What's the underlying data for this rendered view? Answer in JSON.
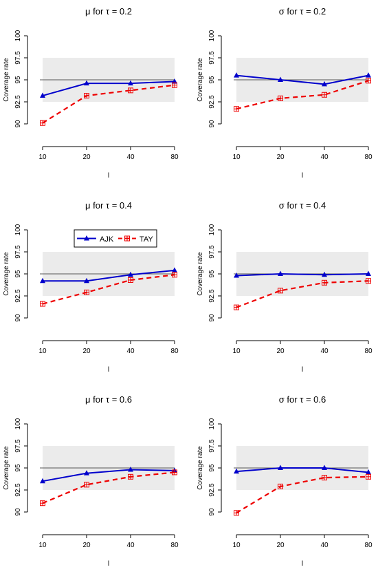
{
  "legend": {
    "placement": "inside-middle-left-panel",
    "entries": [
      {
        "label": "AJK",
        "color": "#0000cc",
        "marker": "triangle",
        "line": "solid"
      },
      {
        "label": "TAY",
        "color": "#ee0000",
        "marker": "boxed-plus",
        "line": "dashed"
      }
    ]
  },
  "chart_data": [
    {
      "type": "line",
      "title_param": "μ",
      "title_for": "for",
      "title_tau": "τ",
      "title_eq": "= 0.2",
      "xlabel": "l",
      "ylabel": "Coverage rate",
      "categories": [
        "10",
        "20",
        "40",
        "80"
      ],
      "yticks": [
        "90",
        "92.5",
        "95",
        "97.5",
        "100"
      ],
      "ylim": [
        90,
        100
      ],
      "reference_line": 95,
      "shaded_band": [
        92.5,
        97.5
      ],
      "series": [
        {
          "name": "AJK",
          "color": "#0000cc",
          "values": [
            93.2,
            94.6,
            94.6,
            94.8
          ]
        },
        {
          "name": "TAY",
          "color": "#ee0000",
          "values": [
            90.1,
            93.2,
            93.8,
            94.4
          ]
        }
      ]
    },
    {
      "type": "line",
      "title_param": "σ",
      "title_for": "for",
      "title_tau": "τ",
      "title_eq": "= 0.2",
      "xlabel": "l",
      "ylabel": "Coverage rate",
      "categories": [
        "10",
        "20",
        "40",
        "80"
      ],
      "yticks": [
        "90",
        "92.5",
        "95",
        "97.5",
        "100"
      ],
      "ylim": [
        90,
        100
      ],
      "reference_line": 95,
      "shaded_band": [
        92.5,
        97.5
      ],
      "series": [
        {
          "name": "AJK",
          "color": "#0000cc",
          "values": [
            95.5,
            95.0,
            94.5,
            95.5
          ]
        },
        {
          "name": "TAY",
          "color": "#ee0000",
          "values": [
            91.7,
            92.9,
            93.3,
            94.9
          ]
        }
      ]
    },
    {
      "type": "line",
      "title_param": "μ",
      "title_for": "for",
      "title_tau": "τ",
      "title_eq": "= 0.4",
      "xlabel": "l",
      "ylabel": "Coverage rate",
      "categories": [
        "10",
        "20",
        "40",
        "80"
      ],
      "yticks": [
        "90",
        "92.5",
        "95",
        "97.5",
        "100"
      ],
      "ylim": [
        90,
        100
      ],
      "reference_line": 95,
      "shaded_band": [
        92.5,
        97.5
      ],
      "series": [
        {
          "name": "AJK",
          "color": "#0000cc",
          "values": [
            94.2,
            94.2,
            94.9,
            95.4
          ]
        },
        {
          "name": "TAY",
          "color": "#ee0000",
          "values": [
            91.6,
            92.9,
            94.3,
            94.9
          ]
        }
      ]
    },
    {
      "type": "line",
      "title_param": "σ",
      "title_for": "for",
      "title_tau": "τ",
      "title_eq": "= 0.4",
      "xlabel": "l",
      "ylabel": "Coverage rate",
      "categories": [
        "10",
        "20",
        "40",
        "80"
      ],
      "yticks": [
        "90",
        "92.5",
        "95",
        "97.5",
        "100"
      ],
      "ylim": [
        90,
        100
      ],
      "reference_line": 95,
      "shaded_band": [
        92.5,
        97.5
      ],
      "series": [
        {
          "name": "AJK",
          "color": "#0000cc",
          "values": [
            94.8,
            95.0,
            94.9,
            95.0
          ]
        },
        {
          "name": "TAY",
          "color": "#ee0000",
          "values": [
            91.2,
            93.1,
            94.0,
            94.2
          ]
        }
      ]
    },
    {
      "type": "line",
      "title_param": "μ",
      "title_for": "for",
      "title_tau": "τ",
      "title_eq": "= 0.6",
      "xlabel": "l",
      "ylabel": "Coverage rate",
      "categories": [
        "10",
        "20",
        "40",
        "80"
      ],
      "yticks": [
        "90",
        "92.5",
        "95",
        "97.5",
        "100"
      ],
      "ylim": [
        90,
        100
      ],
      "reference_line": 95,
      "shaded_band": [
        92.5,
        97.5
      ],
      "series": [
        {
          "name": "AJK",
          "color": "#0000cc",
          "values": [
            93.5,
            94.4,
            94.8,
            94.7
          ]
        },
        {
          "name": "TAY",
          "color": "#ee0000",
          "values": [
            91.0,
            93.1,
            94.0,
            94.5
          ]
        }
      ]
    },
    {
      "type": "line",
      "title_param": "σ",
      "title_for": "for",
      "title_tau": "τ",
      "title_eq": "= 0.6",
      "xlabel": "l",
      "ylabel": "Coverage rate",
      "categories": [
        "10",
        "20",
        "40",
        "80"
      ],
      "yticks": [
        "90",
        "92.5",
        "95",
        "97.5",
        "100"
      ],
      "ylim": [
        90,
        100
      ],
      "reference_line": 95,
      "shaded_band": [
        92.5,
        97.5
      ],
      "series": [
        {
          "name": "AJK",
          "color": "#0000cc",
          "values": [
            94.6,
            95.0,
            95.0,
            94.5
          ]
        },
        {
          "name": "TAY",
          "color": "#ee0000",
          "values": [
            89.9,
            92.9,
            93.9,
            94.0
          ]
        }
      ]
    }
  ]
}
